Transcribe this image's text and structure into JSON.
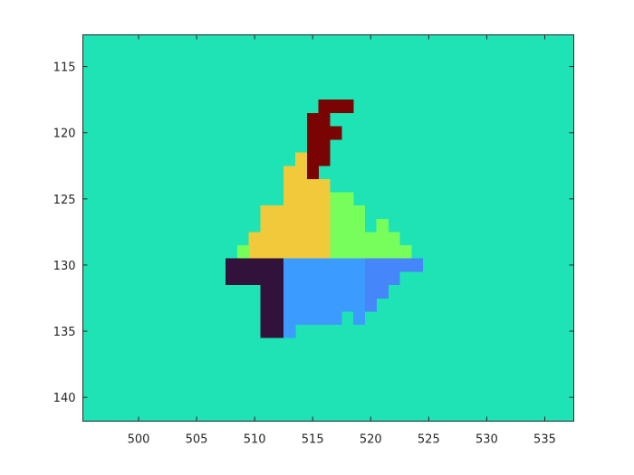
{
  "chart_data": {
    "type": "heatmap",
    "title": "",
    "xlabel": "",
    "ylabel": "",
    "xlim": [
      495.2,
      537.5
    ],
    "ylim": [
      141.8,
      112.6
    ],
    "y_reversed": true,
    "grid": false,
    "legend": "none",
    "background_color": "#1de3b5",
    "x_ticks": [
      500,
      505,
      510,
      515,
      520,
      525,
      530,
      535
    ],
    "y_ticks": [
      115,
      120,
      125,
      130,
      135,
      140
    ],
    "x_tick_labels": [
      "500",
      "505",
      "510",
      "515",
      "520",
      "525",
      "530",
      "535"
    ],
    "y_tick_labels": [
      "115",
      "120",
      "125",
      "130",
      "135",
      "140"
    ],
    "regions": [
      {
        "color": "#7a0403",
        "rows": [
          {
            "y": 118,
            "x0": 516,
            "x1": 518
          },
          {
            "y": 119,
            "x0": 515,
            "x1": 516
          },
          {
            "y": 120,
            "x0": 515,
            "x1": 517
          },
          {
            "y": 121,
            "x0": 515,
            "x1": 516
          },
          {
            "y": 122,
            "x0": 515,
            "x1": 516
          },
          {
            "y": 123,
            "x0": 515,
            "x1": 515
          }
        ]
      },
      {
        "color": "#f0ca3a",
        "rows": [
          {
            "y": 122,
            "x0": 514,
            "x1": 514
          },
          {
            "y": 123,
            "x0": 513,
            "x1": 514
          },
          {
            "y": 124,
            "x0": 513,
            "x1": 516
          },
          {
            "y": 125,
            "x0": 513,
            "x1": 516
          },
          {
            "y": 126,
            "x0": 511,
            "x1": 516
          },
          {
            "y": 127,
            "x0": 511,
            "x1": 516
          },
          {
            "y": 128,
            "x0": 510,
            "x1": 516
          },
          {
            "y": 129,
            "x0": 510,
            "x1": 516
          }
        ]
      },
      {
        "color": "#78fe5a",
        "rows": [
          {
            "y": 125,
            "x0": 517,
            "x1": 518
          },
          {
            "y": 126,
            "x0": 517,
            "x1": 519
          },
          {
            "y": 127,
            "x0": 517,
            "x1": 519
          },
          {
            "y": 127,
            "x0": 521,
            "x1": 521
          },
          {
            "y": 128,
            "x0": 517,
            "x1": 522
          },
          {
            "y": 129,
            "x0": 517,
            "x1": 523
          },
          {
            "y": 129,
            "x0": 509,
            "x1": 509
          }
        ]
      },
      {
        "color": "#30123b",
        "rows": [
          {
            "y": 130,
            "x0": 508,
            "x1": 512
          },
          {
            "y": 131,
            "x0": 508,
            "x1": 512
          },
          {
            "y": 132,
            "x0": 511,
            "x1": 512
          },
          {
            "y": 133,
            "x0": 511,
            "x1": 512
          },
          {
            "y": 134,
            "x0": 511,
            "x1": 512
          },
          {
            "y": 135,
            "x0": 511,
            "x1": 512
          }
        ]
      },
      {
        "color": "#3c9bff",
        "rows": [
          {
            "y": 130,
            "x0": 513,
            "x1": 519
          },
          {
            "y": 131,
            "x0": 513,
            "x1": 519
          },
          {
            "y": 132,
            "x0": 513,
            "x1": 519
          },
          {
            "y": 133,
            "x0": 513,
            "x1": 519
          },
          {
            "y": 134,
            "x0": 513,
            "x1": 517
          },
          {
            "y": 134,
            "x0": 519,
            "x1": 519
          },
          {
            "y": 135,
            "x0": 513,
            "x1": 513
          }
        ]
      },
      {
        "color": "#4686fb",
        "rows": [
          {
            "y": 130,
            "x0": 520,
            "x1": 524
          },
          {
            "y": 131,
            "x0": 520,
            "x1": 522
          },
          {
            "y": 132,
            "x0": 520,
            "x1": 521
          },
          {
            "y": 133,
            "x0": 520,
            "x1": 520
          }
        ]
      }
    ]
  }
}
